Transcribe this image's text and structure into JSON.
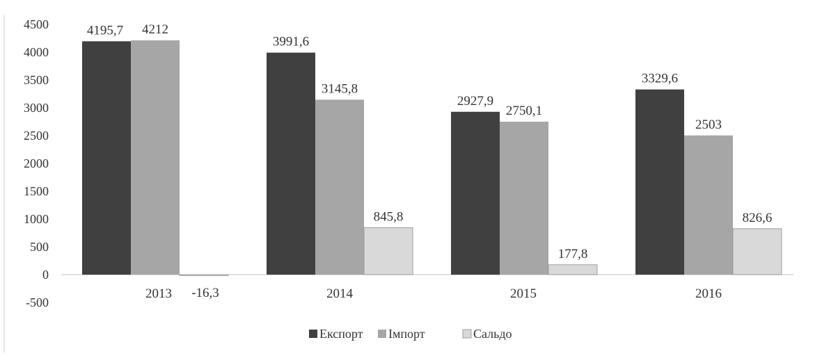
{
  "chart_data": {
    "type": "bar",
    "title": "",
    "xlabel": "",
    "ylabel": "",
    "categories": [
      "2013",
      "2014",
      "2015",
      "2016"
    ],
    "series": [
      {
        "name": "Експорт",
        "values": [
          4195.7,
          3991.6,
          2927.9,
          3329.6
        ],
        "labels": [
          "4195,7",
          "3991,6",
          "2927,9",
          "3329,6"
        ],
        "color": "#404040"
      },
      {
        "name": "Імпорт",
        "values": [
          4212,
          3145.8,
          2750.1,
          2503
        ],
        "labels": [
          "4212",
          "3145,8",
          "2750,1",
          "2503"
        ],
        "color": "#a6a6a6"
      },
      {
        "name": "Сальдо",
        "values": [
          -16.3,
          845.8,
          177.8,
          826.6
        ],
        "labels": [
          "-16,3",
          "845,8",
          "177,8",
          "826,6"
        ],
        "color": "#d9d9d9"
      }
    ],
    "ylim": [
      -500,
      4500
    ],
    "yticks": [
      "-500",
      "0",
      "500",
      "1000",
      "1500",
      "2000",
      "2500",
      "3000",
      "3500",
      "4000",
      "4500"
    ],
    "grid": false,
    "legend_position": "bottom"
  }
}
